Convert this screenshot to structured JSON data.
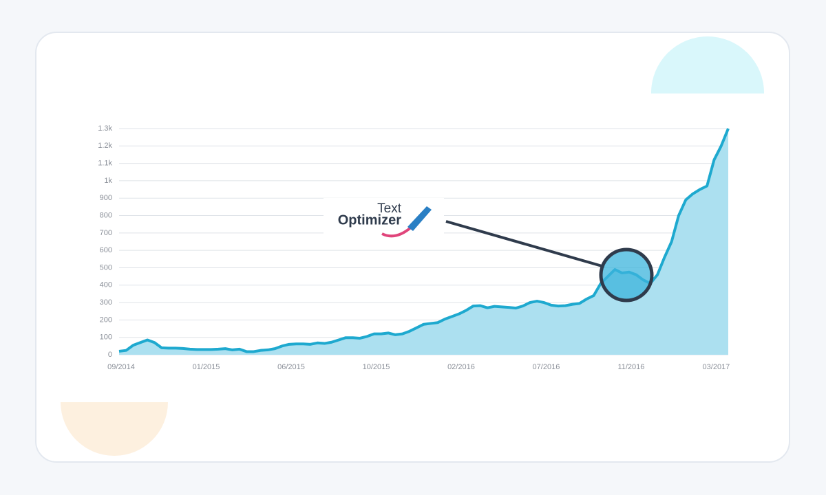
{
  "logo": {
    "line1": "Text",
    "line2": "Optimizer"
  },
  "chart_data": {
    "type": "area",
    "categories": [
      "09/2014",
      null,
      null,
      null,
      null,
      null,
      null,
      null,
      null,
      null,
      null,
      null,
      "01/2015",
      null,
      null,
      null,
      null,
      null,
      null,
      null,
      null,
      null,
      null,
      null,
      "06/2015",
      null,
      null,
      null,
      null,
      null,
      null,
      null,
      null,
      null,
      null,
      null,
      "10/2015",
      null,
      null,
      null,
      null,
      null,
      null,
      null,
      null,
      null,
      null,
      null,
      "02/2016",
      null,
      null,
      null,
      null,
      null,
      null,
      null,
      null,
      null,
      null,
      null,
      "07/2016",
      null,
      null,
      null,
      null,
      null,
      null,
      null,
      null,
      null,
      null,
      null,
      "11/2016",
      null,
      null,
      null,
      null,
      null,
      null,
      null,
      null,
      null,
      null,
      null,
      "03/2017",
      null,
      null
    ],
    "values": [
      20,
      25,
      55,
      70,
      85,
      70,
      40,
      38,
      38,
      36,
      32,
      30,
      30,
      30,
      32,
      35,
      28,
      32,
      18,
      18,
      25,
      28,
      35,
      50,
      60,
      62,
      62,
      60,
      68,
      65,
      72,
      85,
      98,
      98,
      95,
      105,
      120,
      120,
      125,
      115,
      120,
      135,
      155,
      175,
      180,
      185,
      205,
      220,
      235,
      255,
      280,
      282,
      270,
      278,
      275,
      272,
      268,
      280,
      300,
      308,
      300,
      285,
      280,
      282,
      290,
      295,
      320,
      340,
      410,
      450,
      490,
      470,
      475,
      460,
      430,
      410,
      460,
      560,
      650,
      800,
      890,
      925,
      950,
      970,
      1120,
      1200,
      1300
    ],
    "color": "#1ea9cf",
    "fill": "#ace0f0",
    "ylim": [
      0,
      1300
    ],
    "yticks": [
      0,
      100,
      200,
      300,
      400,
      500,
      600,
      700,
      800,
      900,
      {
        "value": 1000,
        "label": "1k"
      },
      {
        "value": 1100,
        "label": "1.1k"
      },
      {
        "value": 1200,
        "label": "1.2k"
      },
      {
        "value": 1300,
        "label": "1.3k"
      }
    ],
    "grid": true
  }
}
